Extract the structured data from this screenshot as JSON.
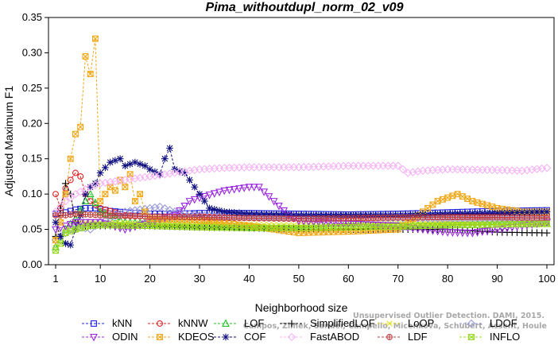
{
  "chart_data": {
    "type": "line",
    "title": "Pima_withoutdupl_norm_02_v09",
    "xlabel": "Neighborhood size",
    "ylabel": "Adjusted Maximum F1",
    "xlim": [
      1,
      100
    ],
    "ylim": [
      0,
      0.35
    ],
    "xticks": [
      1,
      10,
      20,
      30,
      40,
      50,
      60,
      70,
      80,
      90,
      100
    ],
    "yticks": [
      0.0,
      0.05,
      0.1,
      0.15,
      0.2,
      0.25,
      0.3,
      0.35
    ],
    "ytick_labels": [
      "0.00",
      "0.05",
      "0.10",
      "0.15",
      "0.20",
      "0.25",
      "0.30",
      "0.35"
    ],
    "grid": false,
    "legend_position": "bottom",
    "watermark": [
      "Campos, Zimek, Sander, Campello, Micenkova, Schubert, Assent, Houle",
      "Unsupervised Outlier Detection. DAMI, 2015."
    ],
    "series": [
      {
        "name": "kNN",
        "color": "#1f1fe0",
        "marker": "square",
        "points": [
          [
            1,
            0.072
          ],
          [
            3,
            0.074
          ],
          [
            5,
            0.078
          ],
          [
            7,
            0.08
          ],
          [
            9,
            0.08
          ],
          [
            12,
            0.076
          ],
          [
            15,
            0.074
          ],
          [
            20,
            0.072
          ],
          [
            25,
            0.072
          ],
          [
            30,
            0.073
          ],
          [
            40,
            0.073
          ],
          [
            50,
            0.072
          ],
          [
            60,
            0.071
          ],
          [
            70,
            0.072
          ],
          [
            80,
            0.074
          ],
          [
            90,
            0.076
          ],
          [
            100,
            0.077
          ]
        ]
      },
      {
        "name": "kNNW",
        "color": "#e02020",
        "marker": "circle",
        "points": [
          [
            1,
            0.1
          ],
          [
            2,
            0.08
          ],
          [
            3,
            0.108
          ],
          [
            4,
            0.12
          ],
          [
            5,
            0.13
          ],
          [
            6,
            0.125
          ],
          [
            7,
            0.1
          ],
          [
            8,
            0.09
          ],
          [
            10,
            0.08
          ],
          [
            15,
            0.07
          ],
          [
            20,
            0.068
          ],
          [
            30,
            0.068
          ],
          [
            40,
            0.066
          ],
          [
            50,
            0.065
          ],
          [
            60,
            0.065
          ],
          [
            70,
            0.066
          ],
          [
            80,
            0.068
          ],
          [
            90,
            0.07
          ],
          [
            100,
            0.07
          ]
        ]
      },
      {
        "name": "LOF",
        "color": "#20c020",
        "marker": "triangle",
        "points": [
          [
            1,
            0.025
          ],
          [
            2,
            0.035
          ],
          [
            3,
            0.05
          ],
          [
            5,
            0.065
          ],
          [
            7,
            0.09
          ],
          [
            8,
            0.1
          ],
          [
            10,
            0.075
          ],
          [
            15,
            0.06
          ],
          [
            20,
            0.058
          ],
          [
            30,
            0.055
          ],
          [
            40,
            0.053
          ],
          [
            50,
            0.052
          ],
          [
            60,
            0.055
          ],
          [
            70,
            0.055
          ],
          [
            80,
            0.056
          ],
          [
            90,
            0.057
          ],
          [
            100,
            0.058
          ]
        ]
      },
      {
        "name": "SimplifiedLOF",
        "color": "#000000",
        "marker": "plus",
        "points": [
          [
            1,
            0.04
          ],
          [
            2,
            0.08
          ],
          [
            3,
            0.115
          ],
          [
            4,
            0.1
          ],
          [
            5,
            0.06
          ],
          [
            7,
            0.055
          ],
          [
            10,
            0.055
          ],
          [
            15,
            0.055
          ],
          [
            20,
            0.055
          ],
          [
            30,
            0.053
          ],
          [
            40,
            0.052
          ],
          [
            50,
            0.05
          ],
          [
            60,
            0.05
          ],
          [
            70,
            0.05
          ],
          [
            80,
            0.05
          ],
          [
            85,
            0.048
          ],
          [
            90,
            0.046
          ],
          [
            100,
            0.045
          ]
        ]
      },
      {
        "name": "LoOP",
        "color": "#e0e020",
        "marker": "x",
        "points": [
          [
            1,
            0.03
          ],
          [
            3,
            0.05
          ],
          [
            5,
            0.06
          ],
          [
            10,
            0.06
          ],
          [
            20,
            0.058
          ],
          [
            30,
            0.058
          ],
          [
            40,
            0.057
          ],
          [
            50,
            0.056
          ],
          [
            60,
            0.057
          ],
          [
            70,
            0.058
          ],
          [
            80,
            0.058
          ],
          [
            90,
            0.057
          ],
          [
            100,
            0.057
          ]
        ]
      },
      {
        "name": "LDOF",
        "color": "#9a9ad8",
        "marker": "diamond",
        "points": [
          [
            1,
            0.035
          ],
          [
            3,
            0.045
          ],
          [
            5,
            0.055
          ],
          [
            8,
            0.05
          ],
          [
            10,
            0.06
          ],
          [
            15,
            0.075
          ],
          [
            20,
            0.08
          ],
          [
            22,
            0.082
          ],
          [
            25,
            0.075
          ],
          [
            30,
            0.07
          ],
          [
            40,
            0.068
          ],
          [
            50,
            0.066
          ],
          [
            60,
            0.066
          ],
          [
            70,
            0.066
          ],
          [
            80,
            0.065
          ],
          [
            90,
            0.065
          ],
          [
            100,
            0.065
          ]
        ]
      },
      {
        "name": "ODIN",
        "color": "#9a28e0",
        "marker": "triangle-down",
        "points": [
          [
            1,
            0.05
          ],
          [
            3,
            0.055
          ],
          [
            5,
            0.06
          ],
          [
            10,
            0.06
          ],
          [
            15,
            0.05
          ],
          [
            20,
            0.06
          ],
          [
            25,
            0.07
          ],
          [
            28,
            0.09
          ],
          [
            30,
            0.095
          ],
          [
            35,
            0.105
          ],
          [
            40,
            0.11
          ],
          [
            42,
            0.11
          ],
          [
            45,
            0.09
          ],
          [
            48,
            0.07
          ],
          [
            50,
            0.062
          ],
          [
            60,
            0.058
          ],
          [
            70,
            0.055
          ],
          [
            75,
            0.05
          ],
          [
            80,
            0.046
          ],
          [
            85,
            0.045
          ],
          [
            90,
            0.05
          ],
          [
            95,
            0.055
          ],
          [
            100,
            0.06
          ]
        ]
      },
      {
        "name": "KDEOS",
        "color": "#f0a818",
        "marker": "square-x",
        "points": [
          [
            1,
            0.035
          ],
          [
            2,
            0.06
          ],
          [
            3,
            0.1
          ],
          [
            4,
            0.15
          ],
          [
            5,
            0.185
          ],
          [
            6,
            0.195
          ],
          [
            7,
            0.295
          ],
          [
            8,
            0.27
          ],
          [
            9,
            0.32
          ],
          [
            10,
            0.09
          ],
          [
            11,
            0.1
          ],
          [
            12,
            0.11
          ],
          [
            13,
            0.105
          ],
          [
            14,
            0.12
          ],
          [
            15,
            0.11
          ],
          [
            16,
            0.128
          ],
          [
            17,
            0.09
          ],
          [
            18,
            0.1
          ],
          [
            19,
            0.075
          ],
          [
            20,
            0.065
          ],
          [
            30,
            0.063
          ],
          [
            40,
            0.055
          ],
          [
            50,
            0.045
          ],
          [
            60,
            0.047
          ],
          [
            70,
            0.05
          ],
          [
            75,
            0.075
          ],
          [
            78,
            0.09
          ],
          [
            80,
            0.095
          ],
          [
            82,
            0.1
          ],
          [
            85,
            0.09
          ],
          [
            90,
            0.08
          ],
          [
            95,
            0.075
          ],
          [
            100,
            0.075
          ]
        ]
      },
      {
        "name": "COF",
        "color": "#101080",
        "marker": "star",
        "points": [
          [
            1,
            0.06
          ],
          [
            2,
            0.04
          ],
          [
            3,
            0.03
          ],
          [
            4,
            0.028
          ],
          [
            5,
            0.05
          ],
          [
            6,
            0.07
          ],
          [
            7,
            0.1
          ],
          [
            8,
            0.11
          ],
          [
            9,
            0.115
          ],
          [
            10,
            0.13
          ],
          [
            12,
            0.145
          ],
          [
            14,
            0.15
          ],
          [
            15,
            0.14
          ],
          [
            17,
            0.145
          ],
          [
            19,
            0.14
          ],
          [
            20,
            0.135
          ],
          [
            22,
            0.128
          ],
          [
            23,
            0.15
          ],
          [
            24,
            0.165
          ],
          [
            25,
            0.135
          ],
          [
            27,
            0.13
          ],
          [
            28,
            0.12
          ],
          [
            30,
            0.1
          ],
          [
            32,
            0.08
          ],
          [
            35,
            0.075
          ],
          [
            40,
            0.072
          ],
          [
            50,
            0.07
          ],
          [
            60,
            0.07
          ],
          [
            70,
            0.07
          ],
          [
            80,
            0.072
          ],
          [
            90,
            0.073
          ],
          [
            100,
            0.075
          ]
        ]
      },
      {
        "name": "FastABOD",
        "color": "#f4b4f4",
        "marker": "diamond",
        "points": [
          [
            1,
            0.075
          ],
          [
            3,
            0.09
          ],
          [
            5,
            0.1
          ],
          [
            8,
            0.11
          ],
          [
            10,
            0.115
          ],
          [
            15,
            0.12
          ],
          [
            20,
            0.125
          ],
          [
            25,
            0.13
          ],
          [
            30,
            0.135
          ],
          [
            35,
            0.137
          ],
          [
            40,
            0.138
          ],
          [
            50,
            0.138
          ],
          [
            60,
            0.14
          ],
          [
            70,
            0.14
          ],
          [
            72,
            0.13
          ],
          [
            75,
            0.133
          ],
          [
            80,
            0.135
          ],
          [
            90,
            0.134
          ],
          [
            95,
            0.133
          ],
          [
            100,
            0.137
          ]
        ]
      },
      {
        "name": "LDF",
        "color": "#c04040",
        "marker": "circle-plus",
        "points": [
          [
            1,
            0.07
          ],
          [
            3,
            0.07
          ],
          [
            5,
            0.072
          ],
          [
            10,
            0.07
          ],
          [
            20,
            0.068
          ],
          [
            30,
            0.067
          ],
          [
            40,
            0.066
          ],
          [
            50,
            0.065
          ],
          [
            60,
            0.066
          ],
          [
            70,
            0.067
          ],
          [
            80,
            0.067
          ],
          [
            90,
            0.067
          ],
          [
            100,
            0.066
          ]
        ]
      },
      {
        "name": "INFLO",
        "color": "#98d820",
        "marker": "square-x",
        "points": [
          [
            1,
            0.02
          ],
          [
            2,
            0.03
          ],
          [
            3,
            0.045
          ],
          [
            5,
            0.05
          ],
          [
            8,
            0.055
          ],
          [
            10,
            0.056
          ],
          [
            20,
            0.055
          ],
          [
            30,
            0.053
          ],
          [
            40,
            0.052
          ],
          [
            50,
            0.052
          ],
          [
            60,
            0.053
          ],
          [
            70,
            0.054
          ],
          [
            80,
            0.056
          ],
          [
            90,
            0.057
          ],
          [
            100,
            0.058
          ]
        ]
      }
    ]
  }
}
